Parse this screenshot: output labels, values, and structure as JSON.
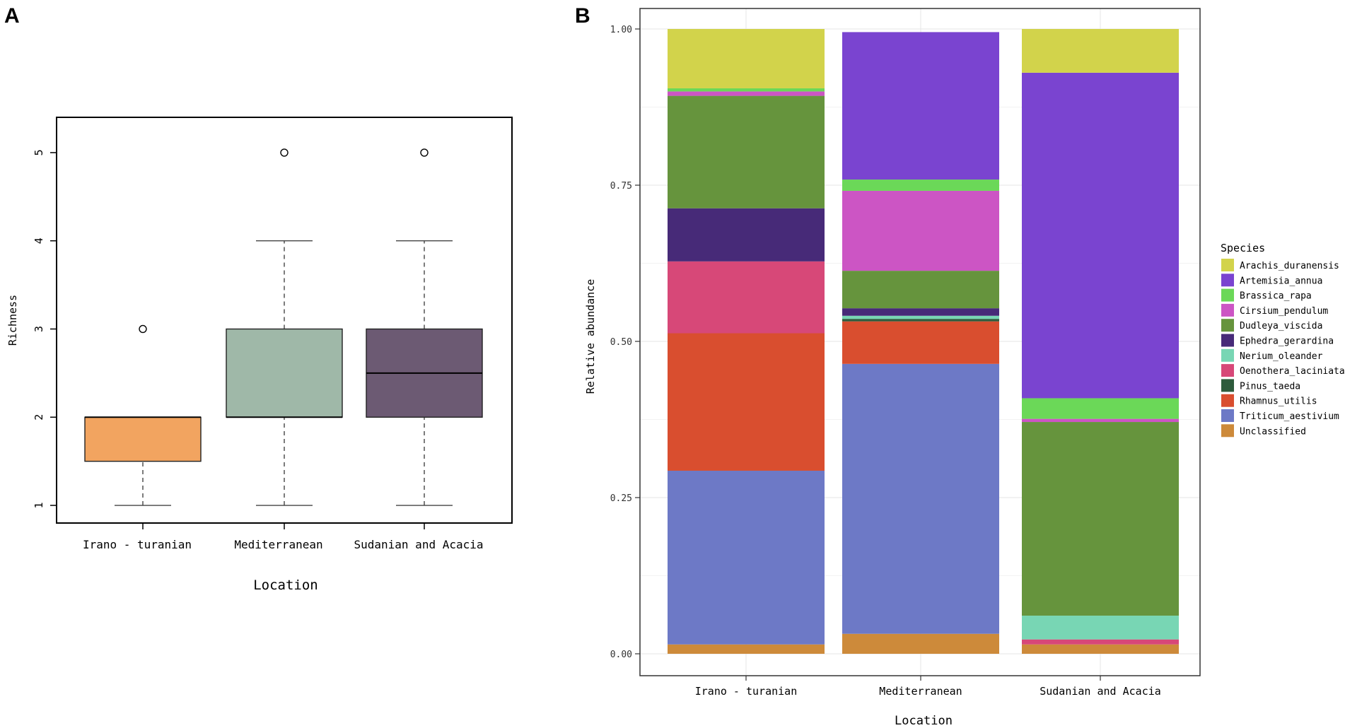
{
  "panel_a": {
    "letter": "A",
    "chart_data": {
      "type": "boxplot",
      "title": "",
      "xlabel": "Location",
      "ylabel": "Richness",
      "ylim": [
        0.8,
        5.4
      ],
      "yticks": [
        1,
        2,
        3,
        4,
        5
      ],
      "categories": [
        "Irano - turanian",
        "Mediterranean",
        "Sudanian and Acacia"
      ],
      "boxes": [
        {
          "name": "Irano - turanian",
          "whisker_low": 1,
          "q1": 1.5,
          "median": 2,
          "q3": 2,
          "whisker_high": 2,
          "outliers": [
            3
          ],
          "color": "#F2A460"
        },
        {
          "name": "Mediterranean",
          "whisker_low": 1,
          "q1": 2,
          "median": 2,
          "q3": 3,
          "whisker_high": 4,
          "outliers": [
            5
          ],
          "color": "#9FB8A8"
        },
        {
          "name": "Sudanian and Acacia",
          "whisker_low": 1,
          "q1": 2,
          "median": 2.5,
          "q3": 3,
          "whisker_high": 4,
          "outliers": [
            5
          ],
          "color": "#6C5A73"
        }
      ]
    }
  },
  "panel_b": {
    "letter": "B",
    "chart_data": {
      "type": "bar",
      "stacked": true,
      "title": "",
      "xlabel": "Location",
      "ylabel": "Relative abundance",
      "ylim": [
        0,
        1
      ],
      "yticks": [
        "0.00",
        "0.25",
        "0.50",
        "0.75",
        "1.00"
      ],
      "categories": [
        "Irano - turanian",
        "Mediterranean",
        "Sudanian and Acacia"
      ],
      "legend_title": "Species",
      "legend_position": "right",
      "grid": true,
      "series": [
        {
          "name": "Unclassified",
          "color": "#CD8A3A",
          "values": [
            0.015,
            0.032,
            0.015
          ]
        },
        {
          "name": "Triticum_aestivium",
          "color": "#6D79C6",
          "values": [
            0.278,
            0.432,
            0.0
          ]
        },
        {
          "name": "Rhamnus_utilis",
          "color": "#D94E2F",
          "values": [
            0.22,
            0.068,
            0.0
          ]
        },
        {
          "name": "Pinus_taeda",
          "color": "#2E5B3C",
          "values": [
            0.0,
            0.004,
            0.0
          ]
        },
        {
          "name": "Oenothera_laciniata",
          "color": "#D74878",
          "values": [
            0.115,
            0.0,
            0.008
          ]
        },
        {
          "name": "Nerium_oleander",
          "color": "#78D6B4",
          "values": [
            0.0,
            0.005,
            0.038
          ]
        },
        {
          "name": "Ephedra_gerardina",
          "color": "#472A78",
          "values": [
            0.085,
            0.012,
            0.0
          ]
        },
        {
          "name": "Dudleya_viscida",
          "color": "#66943D",
          "values": [
            0.18,
            0.06,
            0.31
          ]
        },
        {
          "name": "Cirsium_pendulum",
          "color": "#CC55C4",
          "values": [
            0.007,
            0.128,
            0.005
          ]
        },
        {
          "name": "Brassica_rapa",
          "color": "#6BD858",
          "values": [
            0.005,
            0.018,
            0.033
          ]
        },
        {
          "name": "Artemisia_annua",
          "color": "#7A44D0",
          "values": [
            0.0,
            0.236,
            0.521
          ]
        },
        {
          "name": "Arachis_duranensis",
          "color": "#D2D34B",
          "values": [
            0.095,
            0.0,
            0.07
          ]
        }
      ],
      "legend_order": [
        "Arachis_duranensis",
        "Artemisia_annua",
        "Brassica_rapa",
        "Cirsium_pendulum",
        "Dudleya_viscida",
        "Ephedra_gerardina",
        "Nerium_oleander",
        "Oenothera_laciniata",
        "Pinus_taeda",
        "Rhamnus_utilis",
        "Triticum_aestivium",
        "Unclassified"
      ]
    }
  }
}
